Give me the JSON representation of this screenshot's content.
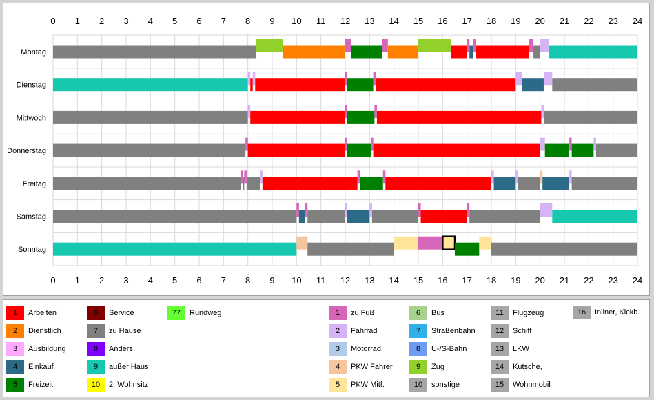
{
  "chart_data": {
    "type": "timeline",
    "x_ticks": [
      0,
      1,
      2,
      3,
      4,
      5,
      6,
      7,
      8,
      9,
      10,
      11,
      12,
      13,
      14,
      15,
      16,
      17,
      18,
      19,
      20,
      21,
      22,
      23,
      24
    ],
    "xlim": [
      0,
      24
    ],
    "days": [
      {
        "label": "Montag",
        "segments": [
          {
            "start": 0,
            "end": 8.35,
            "code": "h7"
          },
          {
            "start": 8.35,
            "end": 9.45,
            "code": "t9"
          },
          {
            "start": 9.45,
            "end": 12,
            "code": "h2"
          },
          {
            "start": 12,
            "end": 12.25,
            "code": "t1"
          },
          {
            "start": 12.25,
            "end": 13.5,
            "code": "h5"
          },
          {
            "start": 13.5,
            "end": 13.75,
            "code": "t1"
          },
          {
            "start": 13.75,
            "end": 15,
            "code": "h2"
          },
          {
            "start": 15,
            "end": 16.35,
            "code": "t9"
          },
          {
            "start": 16.35,
            "end": 17,
            "code": "h1"
          },
          {
            "start": 17,
            "end": 17.1,
            "code": "t1"
          },
          {
            "start": 17.1,
            "end": 17.25,
            "code": "h4"
          },
          {
            "start": 17.25,
            "end": 17.35,
            "code": "t1"
          },
          {
            "start": 17.35,
            "end": 19.55,
            "code": "h1"
          },
          {
            "start": 19.55,
            "end": 19.7,
            "code": "t1"
          },
          {
            "start": 19.7,
            "end": 20,
            "code": "h7"
          },
          {
            "start": 20,
            "end": 20.35,
            "code": "t2"
          },
          {
            "start": 20.35,
            "end": 24,
            "code": "h9"
          }
        ]
      },
      {
        "label": "Dienstag",
        "segments": [
          {
            "start": 0,
            "end": 8,
            "code": "h9"
          },
          {
            "start": 8,
            "end": 8.1,
            "code": "t2"
          },
          {
            "start": 8.1,
            "end": 8.2,
            "code": "h1"
          },
          {
            "start": 8.2,
            "end": 8.3,
            "code": "t2"
          },
          {
            "start": 8.3,
            "end": 12,
            "code": "h1"
          },
          {
            "start": 12,
            "end": 12.08,
            "code": "t1"
          },
          {
            "start": 12.08,
            "end": 13.15,
            "code": "h5"
          },
          {
            "start": 13.15,
            "end": 13.25,
            "code": "t1"
          },
          {
            "start": 13.25,
            "end": 19,
            "code": "h1"
          },
          {
            "start": 19,
            "end": 19.25,
            "code": "t2"
          },
          {
            "start": 19.25,
            "end": 20.15,
            "code": "h4"
          },
          {
            "start": 20.15,
            "end": 20.5,
            "code": "t2"
          },
          {
            "start": 20.5,
            "end": 24,
            "code": "h7"
          }
        ]
      },
      {
        "label": "Mittwoch",
        "segments": [
          {
            "start": 0,
            "end": 8,
            "code": "h7"
          },
          {
            "start": 8,
            "end": 8.1,
            "code": "t2"
          },
          {
            "start": 8.1,
            "end": 12,
            "code": "h1"
          },
          {
            "start": 12,
            "end": 12.08,
            "code": "t1"
          },
          {
            "start": 12.08,
            "end": 13.2,
            "code": "h5"
          },
          {
            "start": 13.2,
            "end": 13.3,
            "code": "t1"
          },
          {
            "start": 13.3,
            "end": 20.05,
            "code": "h1"
          },
          {
            "start": 20.05,
            "end": 20.15,
            "code": "t2"
          },
          {
            "start": 20.15,
            "end": 24,
            "code": "h7"
          }
        ]
      },
      {
        "label": "Donnerstag",
        "segments": [
          {
            "start": 0,
            "end": 7.9,
            "code": "h7"
          },
          {
            "start": 7.9,
            "end": 8,
            "code": "t1"
          },
          {
            "start": 8,
            "end": 12,
            "code": "h1"
          },
          {
            "start": 12,
            "end": 12.08,
            "code": "t1"
          },
          {
            "start": 12.08,
            "end": 13.05,
            "code": "h5"
          },
          {
            "start": 13.05,
            "end": 13.15,
            "code": "t1"
          },
          {
            "start": 13.15,
            "end": 20,
            "code": "h1"
          },
          {
            "start": 20,
            "end": 20.2,
            "code": "t2"
          },
          {
            "start": 20.2,
            "end": 21.2,
            "code": "h5"
          },
          {
            "start": 21.2,
            "end": 21.3,
            "code": "t1"
          },
          {
            "start": 21.3,
            "end": 22.2,
            "code": "h5"
          },
          {
            "start": 22.2,
            "end": 22.3,
            "code": "t2"
          },
          {
            "start": 22.3,
            "end": 24,
            "code": "h7"
          }
        ]
      },
      {
        "label": "Freitag",
        "segments": [
          {
            "start": 0,
            "end": 7.7,
            "code": "h7"
          },
          {
            "start": 7.7,
            "end": 7.8,
            "code": "t1"
          },
          {
            "start": 7.8,
            "end": 7.85,
            "code": "h7"
          },
          {
            "start": 7.85,
            "end": 7.95,
            "code": "t1"
          },
          {
            "start": 7.95,
            "end": 8.5,
            "code": "h7"
          },
          {
            "start": 8.5,
            "end": 8.6,
            "code": "t2"
          },
          {
            "start": 8.6,
            "end": 12.5,
            "code": "h1"
          },
          {
            "start": 12.5,
            "end": 12.6,
            "code": "t1"
          },
          {
            "start": 12.6,
            "end": 13.55,
            "code": "h5"
          },
          {
            "start": 13.55,
            "end": 13.65,
            "code": "t1"
          },
          {
            "start": 13.65,
            "end": 18,
            "code": "h1"
          },
          {
            "start": 18,
            "end": 18.1,
            "code": "t2"
          },
          {
            "start": 18.1,
            "end": 19,
            "code": "h4"
          },
          {
            "start": 19,
            "end": 19.1,
            "code": "t2"
          },
          {
            "start": 19.1,
            "end": 20,
            "code": "h7"
          },
          {
            "start": 20,
            "end": 20.1,
            "code": "t4"
          },
          {
            "start": 20.1,
            "end": 21.2,
            "code": "h4"
          },
          {
            "start": 21.2,
            "end": 21.3,
            "code": "t2"
          },
          {
            "start": 21.3,
            "end": 24,
            "code": "h7"
          }
        ]
      },
      {
        "label": "Samstag",
        "segments": [
          {
            "start": 0,
            "end": 10,
            "code": "h7"
          },
          {
            "start": 10,
            "end": 10.1,
            "code": "t1"
          },
          {
            "start": 10.1,
            "end": 10.35,
            "code": "h4"
          },
          {
            "start": 10.35,
            "end": 10.45,
            "code": "t1"
          },
          {
            "start": 10.45,
            "end": 12,
            "code": "h7"
          },
          {
            "start": 12,
            "end": 12.08,
            "code": "t2"
          },
          {
            "start": 12.08,
            "end": 13,
            "code": "h4"
          },
          {
            "start": 13,
            "end": 13.1,
            "code": "t2"
          },
          {
            "start": 13.1,
            "end": 15,
            "code": "h7"
          },
          {
            "start": 15,
            "end": 15.1,
            "code": "t1"
          },
          {
            "start": 15.1,
            "end": 17,
            "code": "h1"
          },
          {
            "start": 17,
            "end": 17.1,
            "code": "t1"
          },
          {
            "start": 17.1,
            "end": 20,
            "code": "h7"
          },
          {
            "start": 20,
            "end": 20.5,
            "code": "t2"
          },
          {
            "start": 20.5,
            "end": 24,
            "code": "h9"
          }
        ]
      },
      {
        "label": "Sonntag",
        "segments": [
          {
            "start": 0,
            "end": 10,
            "code": "h9"
          },
          {
            "start": 10,
            "end": 10.45,
            "code": "t4"
          },
          {
            "start": 10.45,
            "end": 14,
            "code": "h7"
          },
          {
            "start": 14,
            "end": 15,
            "code": "t5"
          },
          {
            "start": 15,
            "end": 16,
            "code": "t1"
          },
          {
            "start": 16,
            "end": 16.5,
            "code": "t5",
            "selected": true
          },
          {
            "start": 16.5,
            "end": 17.5,
            "code": "h5"
          },
          {
            "start": 17.5,
            "end": 18,
            "code": "t5"
          },
          {
            "start": 18,
            "end": 24,
            "code": "h7"
          }
        ]
      }
    ]
  },
  "colors": {
    "h1": "#ff0000",
    "h2": "#ff8000",
    "h3": "#ffaaff",
    "h4": "#2c6a88",
    "h5": "#008000",
    "h6": "#800000",
    "h7": "#808080",
    "h8": "#8000ff",
    "h9": "#17c8b0",
    "h10": "#ffff00",
    "h77": "#66ff33",
    "t1": "#d667b8",
    "t2": "#d6b3f5",
    "t3": "#b0cce8",
    "t4": "#f5c5a0",
    "t5": "#ffe59a",
    "t6": "#a9d18e",
    "t7": "#31b0e8",
    "t8": "#6e9bef",
    "t9": "#92d02b",
    "t10": "#a6a6a6",
    "t11": "#a6a6a6",
    "t12": "#a6a6a6",
    "t13": "#a6a6a6",
    "t14": "#a6a6a6",
    "t15": "#a6a6a6",
    "t16": "#a6a6a6"
  },
  "legend": [
    {
      "code": "h1",
      "num": "1",
      "label": "Arbeiten"
    },
    {
      "code": "h2",
      "num": "2",
      "label": "Dienstlich"
    },
    {
      "code": "h3",
      "num": "3",
      "label": "Ausbildung"
    },
    {
      "code": "h4",
      "num": "4",
      "label": "Einkauf"
    },
    {
      "code": "h5",
      "num": "5",
      "label": "Freizeit"
    },
    {
      "code": "h6",
      "num": "6",
      "label": "Service"
    },
    {
      "code": "h7",
      "num": "7",
      "label": "zu Hause"
    },
    {
      "code": "h8",
      "num": "8",
      "label": "Anders"
    },
    {
      "code": "h9",
      "num": "9",
      "label": "außer Haus"
    },
    {
      "code": "h10",
      "num": "10",
      "label": "2. Wohnsitz"
    },
    {
      "code": "h77",
      "num": "77",
      "label": "Rundweg"
    },
    {
      "code": "t1",
      "num": "1",
      "label": "zu Fuß"
    },
    {
      "code": "t2",
      "num": "2",
      "label": "Fahrrad"
    },
    {
      "code": "t3",
      "num": "3",
      "label": "Motorrad"
    },
    {
      "code": "t4",
      "num": "4",
      "label": "PKW Fahrer"
    },
    {
      "code": "t5",
      "num": "5",
      "label": "PKW Mitf."
    },
    {
      "code": "t6",
      "num": "6",
      "label": "Bus"
    },
    {
      "code": "t7",
      "num": "7",
      "label": "Straßenbahn"
    },
    {
      "code": "t8",
      "num": "8",
      "label": "U-/S-Bahn"
    },
    {
      "code": "t9",
      "num": "9",
      "label": "Zug"
    },
    {
      "code": "t10",
      "num": "10",
      "label": "sonstige"
    },
    {
      "code": "t11",
      "num": "11",
      "label": "Flugzeug"
    },
    {
      "code": "t12",
      "num": "12",
      "label": "Schiff"
    },
    {
      "code": "t13",
      "num": "13",
      "label": "LKW"
    },
    {
      "code": "t14",
      "num": "14",
      "label": "Kutsche,"
    },
    {
      "code": "t15",
      "num": "15",
      "label": "Wohnmobil"
    },
    {
      "code": "t16",
      "num": "16",
      "label": "Inliner, Kickb."
    }
  ]
}
